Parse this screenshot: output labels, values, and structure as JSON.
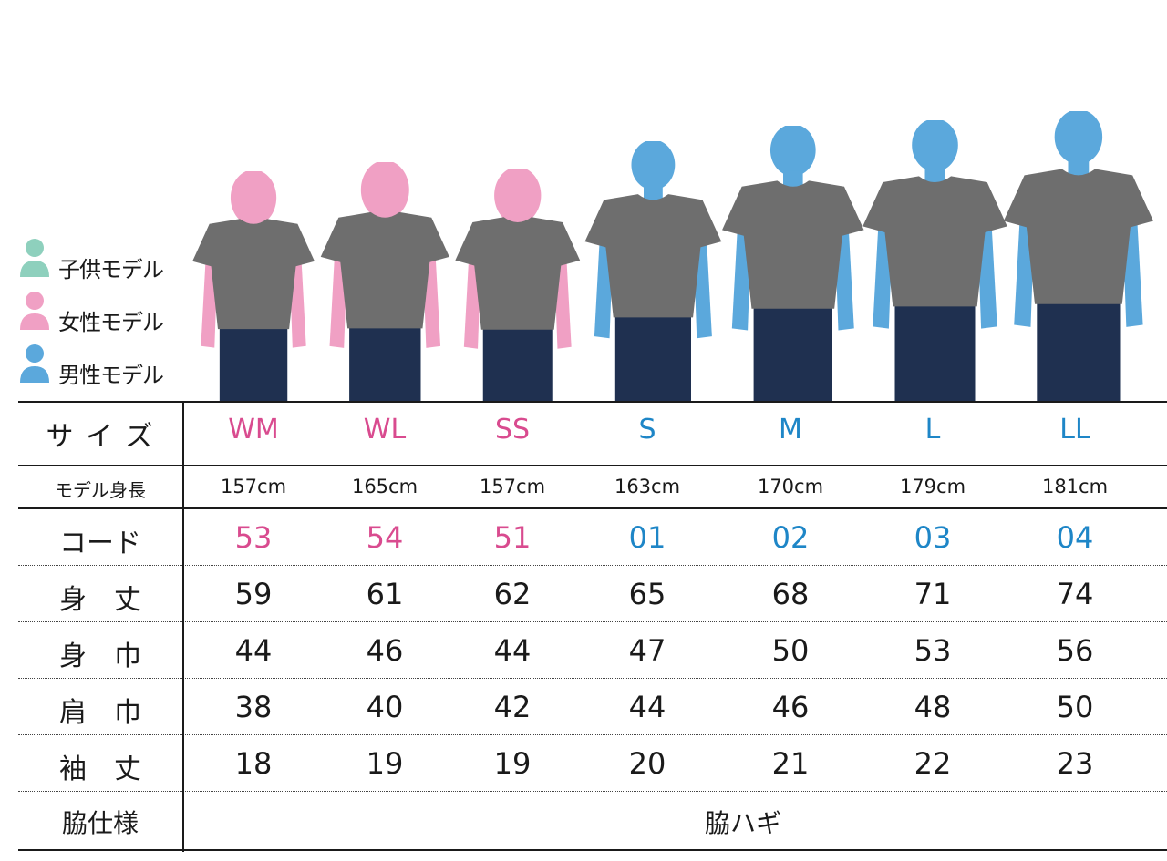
{
  "colors": {
    "female": "#f0a0c4",
    "male": "#5ba8dc",
    "child": "#8ed0bd",
    "shirt": "#6e6e6e",
    "jeans": "#1f3050",
    "pink_text": "#d94b8f",
    "blue_text": "#1e86c7"
  },
  "legend": [
    {
      "label": "子供モデル",
      "icon": "child-person-icon",
      "color": "#8ed0bd"
    },
    {
      "label": "女性モデル",
      "icon": "female-person-icon",
      "color": "#f0a0c4"
    },
    {
      "label": "男性モデル",
      "icon": "male-person-icon",
      "color": "#5ba8dc"
    }
  ],
  "table": {
    "columns": [
      {
        "size": "WM",
        "height": "157cm",
        "code": "53",
        "gender": "female"
      },
      {
        "size": "WL",
        "height": "165cm",
        "code": "54",
        "gender": "female"
      },
      {
        "size": "SS",
        "height": "157cm",
        "code": "51",
        "gender": "female"
      },
      {
        "size": "S",
        "height": "163cm",
        "code": "01",
        "gender": "male"
      },
      {
        "size": "M",
        "height": "170cm",
        "code": "02",
        "gender": "male"
      },
      {
        "size": "L",
        "height": "179cm",
        "code": "03",
        "gender": "male"
      },
      {
        "size": "LL",
        "height": "181cm",
        "code": "04",
        "gender": "male"
      }
    ],
    "labels": {
      "size": "サ イ ズ",
      "model_height": "モデル身長",
      "code": "コード",
      "body_length": "身　丈",
      "body_width": "身　巾",
      "shoulder_width": "肩　巾",
      "sleeve_length": "袖　丈",
      "side_spec": "脇仕様"
    },
    "measurements": {
      "body_length": [
        "59",
        "61",
        "62",
        "65",
        "68",
        "71",
        "74"
      ],
      "body_width": [
        "44",
        "46",
        "44",
        "47",
        "50",
        "53",
        "56"
      ],
      "shoulder_width": [
        "38",
        "40",
        "42",
        "44",
        "46",
        "48",
        "50"
      ],
      "sleeve_length": [
        "18",
        "19",
        "19",
        "20",
        "21",
        "22",
        "23"
      ]
    },
    "side_spec_value": "脇ハギ"
  }
}
